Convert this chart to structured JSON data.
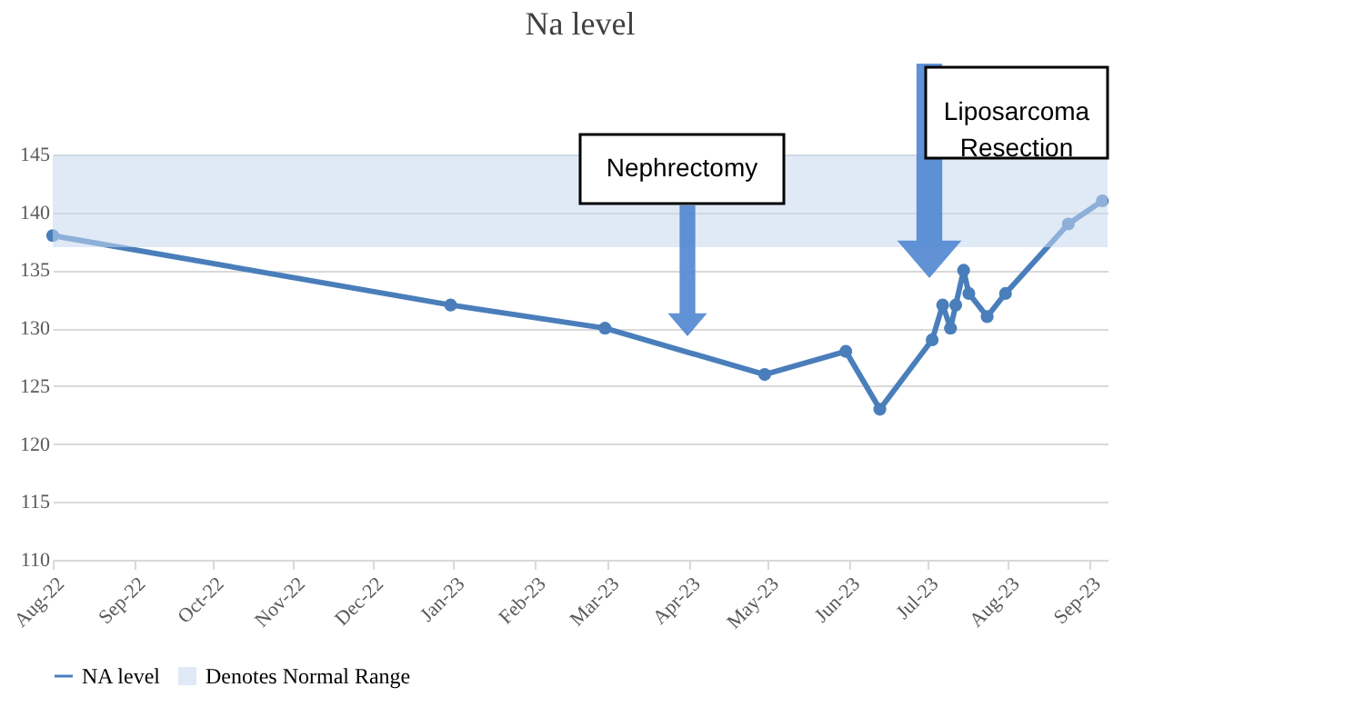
{
  "chart_data": {
    "type": "line",
    "title": "Na level",
    "x": [
      "2022-08-01",
      "2022-12-31",
      "2023-02-28",
      "2023-04-30",
      "2023-05-31",
      "2023-06-13",
      "2023-07-03",
      "2023-07-07",
      "2023-07-10",
      "2023-07-12",
      "2023-07-15",
      "2023-07-17",
      "2023-07-24",
      "2023-07-31",
      "2023-08-24",
      "2023-09-06"
    ],
    "series": [
      {
        "name": "NA level",
        "color": "#4a7ebb",
        "values": [
          138,
          132,
          130,
          126,
          128,
          123,
          129,
          132,
          130,
          132,
          135,
          133,
          131,
          133,
          139,
          141
        ]
      }
    ],
    "xlim": [
      "2022-08-01",
      "2023-09-08"
    ],
    "xticks": [
      {
        "value": "2022-08-01",
        "label": "Aug-22"
      },
      {
        "value": "2022-09-01",
        "label": "Sep-22"
      },
      {
        "value": "2022-10-01",
        "label": "Oct-22"
      },
      {
        "value": "2022-11-01",
        "label": "Nov-22"
      },
      {
        "value": "2022-12-01",
        "label": "Dec-22"
      },
      {
        "value": "2023-01-01",
        "label": "Jan-23"
      },
      {
        "value": "2023-02-01",
        "label": "Feb-23"
      },
      {
        "value": "2023-03-01",
        "label": "Mar-23"
      },
      {
        "value": "2023-04-01",
        "label": "Apr-23"
      },
      {
        "value": "2023-05-01",
        "label": "May-23"
      },
      {
        "value": "2023-06-01",
        "label": "Jun-23"
      },
      {
        "value": "2023-07-01",
        "label": "Jul-23"
      },
      {
        "value": "2023-08-01",
        "label": "Aug-23"
      },
      {
        "value": "2023-09-01",
        "label": "Sep-23"
      }
    ],
    "ylim": [
      110,
      145
    ],
    "yticks": [
      110,
      115,
      120,
      125,
      130,
      135,
      140,
      145
    ],
    "bands": [
      {
        "axis": "y",
        "from": 137,
        "to": 145,
        "label": "Denotes Normal Range",
        "color": "#c6d7ef"
      }
    ],
    "annotations": [
      "Nephrectomy",
      "Liposarcoma Resection"
    ],
    "grid": "y",
    "legend": "bottom",
    "marker": "circle",
    "line_style": "solid"
  }
}
